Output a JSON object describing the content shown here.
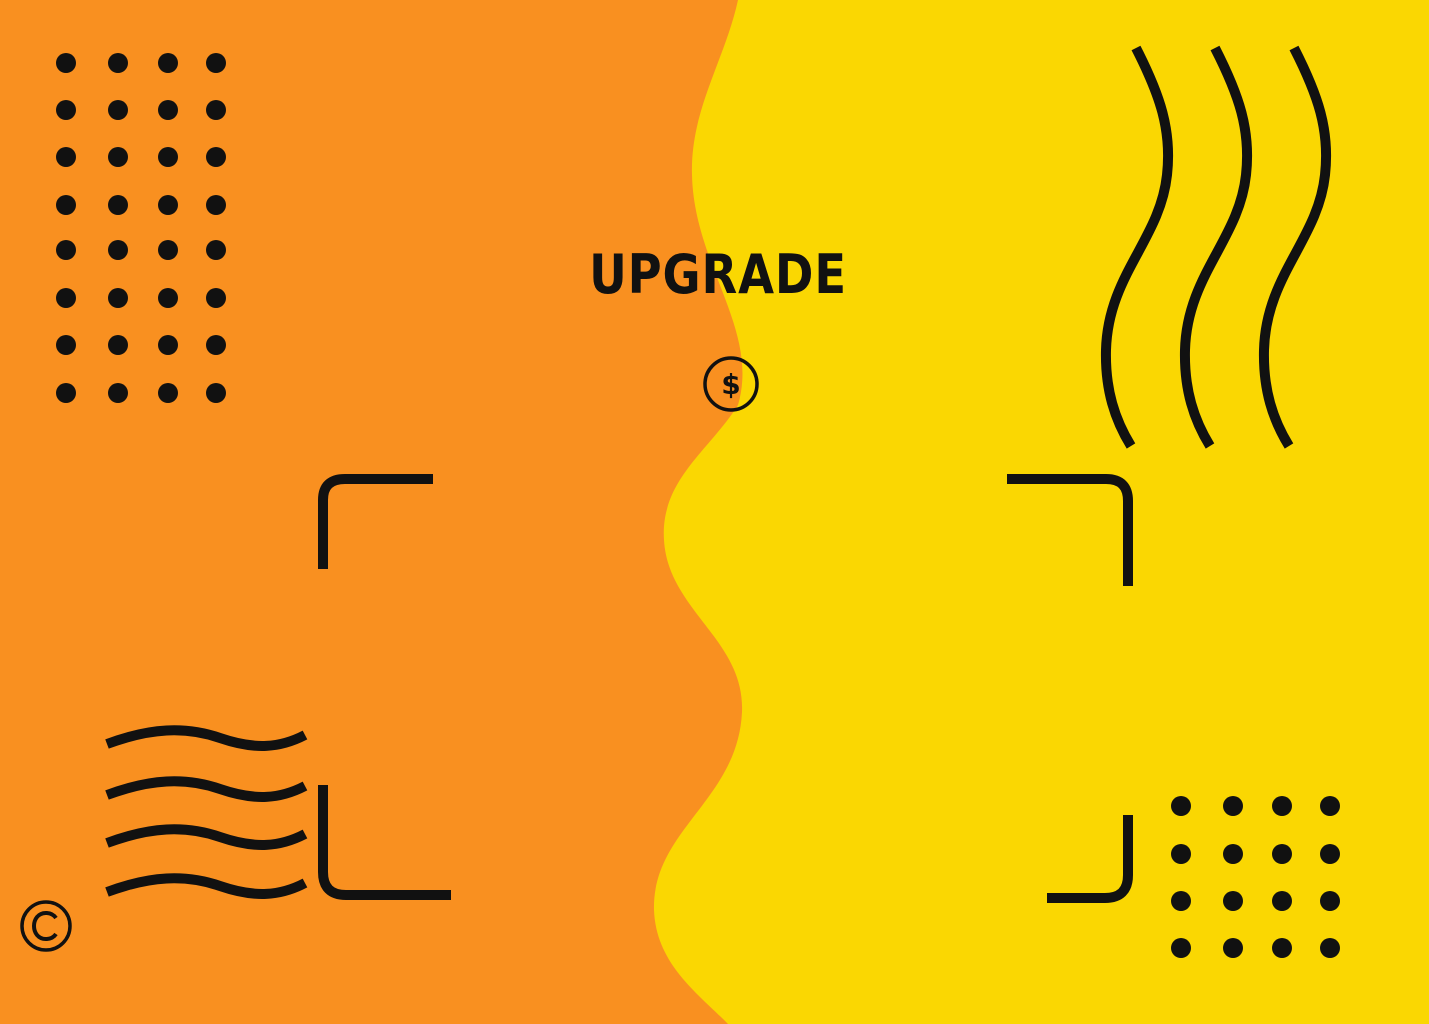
{
  "title": "UPGRADE",
  "icons": {
    "upgrade": "dollar-coin-icon",
    "copyright": "copyright-icon"
  },
  "colors": {
    "left_background": "#f99020",
    "right_background": "#fad702",
    "ink": "#111111"
  }
}
